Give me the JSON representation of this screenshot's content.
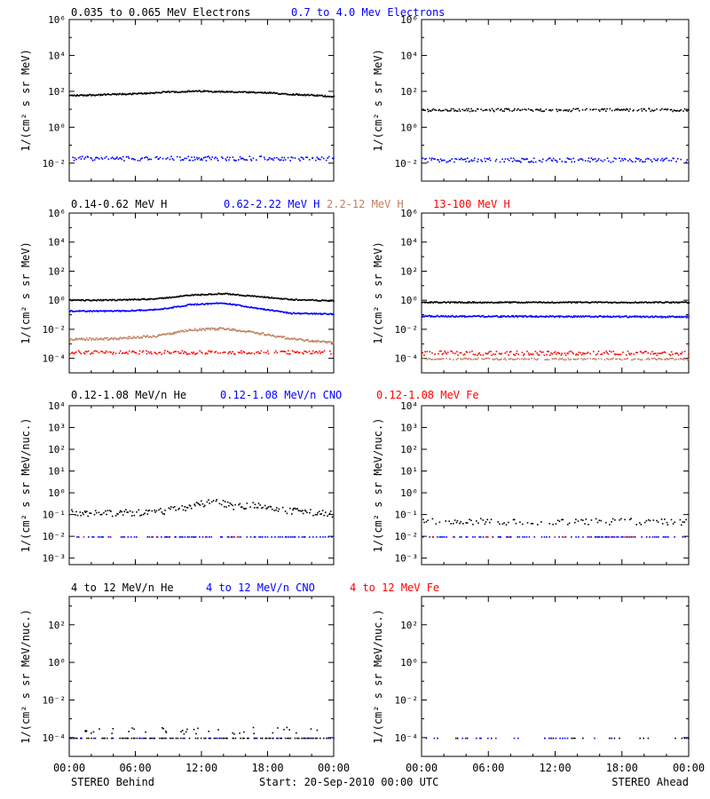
{
  "footer": {
    "left_caption": "STEREO Behind",
    "center_caption": "Start: 20-Sep-2010 00:00 UTC",
    "right_caption": "STEREO Ahead"
  },
  "x_ticks": [
    "00:00",
    "06:00",
    "12:00",
    "18:00",
    "00:00"
  ],
  "colors": {
    "black": "#000000",
    "blue": "#0000ff",
    "tan": "#c08060",
    "red": "#ff0000"
  },
  "chart_data": [
    {
      "type": "scatter",
      "ylabel_html": "1/(cm² s sr MeV)",
      "ylog": true,
      "ylim_exp": [
        -3,
        6
      ],
      "y_tick_exps": [
        -2,
        0,
        2,
        4,
        6
      ],
      "xlim_hours": [
        0,
        24
      ],
      "panels": [
        {
          "spacecraft": "STEREO Behind",
          "series": [
            {
              "name": "0.035 to 0.065 MeV Electrons",
              "color": "black",
              "style": "dense",
              "x_hours": [
                0,
                3,
                6,
                9,
                12,
                15,
                18,
                21,
                24
              ],
              "log10_y": [
                1.8,
                1.85,
                1.9,
                2.0,
                2.05,
                2.0,
                1.95,
                1.85,
                1.75
              ],
              "jitter": 0.04
            },
            {
              "name": "0.7 to 4.0 Mev Electrons",
              "color": "blue",
              "style": "sparse",
              "x_hours": [
                0,
                24
              ],
              "log10_y": [
                -1.7,
                -1.7
              ],
              "jitter": 0.12
            }
          ]
        },
        {
          "spacecraft": "STEREO Ahead",
          "series": [
            {
              "name": "0.035 to 0.065 MeV Electrons",
              "color": "black",
              "style": "sparse",
              "x_hours": [
                0,
                24
              ],
              "log10_y": [
                1.0,
                1.0
              ],
              "jitter": 0.08
            },
            {
              "name": "0.7 to 4.0 Mev Electrons",
              "color": "blue",
              "style": "sparse",
              "x_hours": [
                0,
                24
              ],
              "log10_y": [
                -1.8,
                -1.8
              ],
              "jitter": 0.12
            }
          ]
        }
      ],
      "legend": [
        {
          "text": "0.035 to 0.065 MeV Electrons",
          "color": "black"
        },
        {
          "text": "0.7 to 4.0 Mev Electrons",
          "color": "blue"
        }
      ]
    },
    {
      "type": "scatter",
      "ylabel_html": "1/(cm² s sr MeV)",
      "ylog": true,
      "ylim_exp": [
        -5,
        6
      ],
      "y_tick_exps": [
        -4,
        -2,
        0,
        2,
        4,
        6
      ],
      "xlim_hours": [
        0,
        24
      ],
      "panels": [
        {
          "spacecraft": "STEREO Behind",
          "series": [
            {
              "name": "0.14-0.62 MeV H",
              "color": "black",
              "style": "dense",
              "x_hours": [
                0,
                4,
                8,
                11,
                14,
                17,
                20,
                24
              ],
              "log10_y": [
                0.05,
                0.05,
                0.15,
                0.4,
                0.5,
                0.3,
                0.1,
                0.0
              ],
              "jitter": 0.04
            },
            {
              "name": "0.62-2.22 MeV H",
              "color": "blue",
              "style": "dense",
              "x_hours": [
                0,
                4,
                8,
                11,
                14,
                17,
                20,
                24
              ],
              "log10_y": [
                -0.7,
                -0.7,
                -0.6,
                -0.25,
                -0.15,
                -0.5,
                -0.85,
                -0.9
              ],
              "jitter": 0.04
            },
            {
              "name": "2.2-12 MeV H",
              "color": "tan",
              "style": "dense",
              "x_hours": [
                0,
                4,
                8,
                11,
                14,
                17,
                20,
                24
              ],
              "log10_y": [
                -2.65,
                -2.6,
                -2.4,
                -2.0,
                -1.9,
                -2.2,
                -2.6,
                -2.9
              ],
              "jitter": 0.08
            },
            {
              "name": "13-100 MeV H",
              "color": "red",
              "style": "sparse",
              "x_hours": [
                0,
                24
              ],
              "log10_y": [
                -3.55,
                -3.55
              ],
              "jitter": 0.12
            }
          ]
        },
        {
          "spacecraft": "STEREO Ahead",
          "series": [
            {
              "name": "0.14-0.62 MeV H",
              "color": "black",
              "style": "dense",
              "x_hours": [
                0,
                24
              ],
              "log10_y": [
                -0.1,
                -0.1
              ],
              "jitter": 0.04
            },
            {
              "name": "0.62-2.22 MeV H",
              "color": "blue",
              "style": "dense",
              "x_hours": [
                0,
                24
              ],
              "log10_y": [
                -1.05,
                -1.1
              ],
              "jitter": 0.05
            },
            {
              "name": "2.2-12 MeV H",
              "color": "tan",
              "style": "sparse",
              "x_hours": [
                0,
                24
              ],
              "log10_y": [
                -4.0,
                -4.0
              ],
              "jitter": 0.06
            },
            {
              "name": "13-100 MeV H",
              "color": "red",
              "style": "sparse",
              "x_hours": [
                0,
                24
              ],
              "log10_y": [
                -3.6,
                -3.6
              ],
              "jitter": 0.15
            }
          ]
        }
      ],
      "legend": [
        {
          "text": "0.14-0.62 MeV H",
          "color": "black"
        },
        {
          "text": "0.62-2.22 MeV H",
          "color": "blue"
        },
        {
          "text": "2.2-12 MeV H",
          "color": "tan"
        },
        {
          "text": "13-100 MeV H",
          "color": "red"
        }
      ]
    },
    {
      "type": "scatter",
      "ylabel_html": "1/(cm² s sr MeV/nuc.)",
      "ylog": true,
      "ylim_exp": [
        -3.3,
        4
      ],
      "y_tick_exps": [
        -3,
        -2,
        -1,
        0,
        1,
        2,
        3,
        4
      ],
      "y_tick_labels": [
        "10⁻³",
        "10⁻²",
        "10⁻¹",
        "10⁰",
        "10¹",
        "10²",
        "10³",
        "10⁴"
      ],
      "xlim_hours": [
        0,
        24
      ],
      "panels": [
        {
          "spacecraft": "STEREO Behind",
          "series": [
            {
              "name": "0.12-1.08 MeV/n He",
              "color": "black",
              "style": "sparse",
              "x_hours": [
                0,
                4,
                8,
                11,
                13,
                15,
                17,
                20,
                24
              ],
              "log10_y": [
                -0.9,
                -0.9,
                -0.85,
                -0.6,
                -0.35,
                -0.6,
                -0.5,
                -0.8,
                -0.95
              ],
              "jitter": 0.15
            },
            {
              "name": "0.12-1.08 MeV/n CNO",
              "color": "blue",
              "style": "floor",
              "x_hours": [
                0,
                24
              ],
              "log10_y": [
                -2.0,
                -2.0
              ],
              "jitter": 0.0
            },
            {
              "name": "0.12-1.08 MeV Fe",
              "color": "red",
              "style": "floor-rare",
              "x_hours": [
                0,
                24
              ],
              "log10_y": [
                -2.0,
                -2.0
              ],
              "jitter": 0.0
            }
          ]
        },
        {
          "spacecraft": "STEREO Ahead",
          "series": [
            {
              "name": "0.12-1.08 MeV/n He",
              "color": "black",
              "style": "floor",
              "x_hours": [
                0,
                24
              ],
              "log10_y": [
                -1.3,
                -1.3
              ],
              "jitter": 0.15
            },
            {
              "name": "0.12-1.08 MeV/n CNO",
              "color": "blue",
              "style": "floor",
              "x_hours": [
                0,
                24
              ],
              "log10_y": [
                -2.0,
                -2.0
              ],
              "jitter": 0.0
            },
            {
              "name": "0.12-1.08 MeV Fe",
              "color": "red",
              "style": "floor-rare",
              "x_hours": [
                0,
                24
              ],
              "log10_y": [
                -2.0,
                -2.0
              ],
              "jitter": 0.0
            }
          ]
        }
      ],
      "legend": [
        {
          "text": "0.12-1.08 MeV/n He",
          "color": "black"
        },
        {
          "text": "0.12-1.08 MeV/n CNO",
          "color": "blue"
        },
        {
          "text": "0.12-1.08 MeV Fe",
          "color": "red"
        }
      ]
    },
    {
      "type": "scatter",
      "ylabel_html": "1/(cm² s sr MeV/nuc.)",
      "ylog": true,
      "ylim_exp": [
        -5,
        3.5
      ],
      "y_tick_exps": [
        -4,
        -2,
        0,
        2
      ],
      "xlim_hours": [
        0,
        24
      ],
      "panels": [
        {
          "spacecraft": "STEREO Behind",
          "series": [
            {
              "name": "4 to 12 MeV/n He",
              "color": "black",
              "style": "floor",
              "x_hours": [
                0,
                24
              ],
              "log10_y": [
                -4.0,
                -4.0
              ],
              "jitter": 0.0,
              "extra": {
                "count": 40,
                "range_log10": [
                  -3.8,
                  -3.4
                ]
              }
            },
            {
              "name": "4 to 12 MeV/n CNO",
              "color": "blue",
              "style": "floor-rare",
              "x_hours": [
                0,
                24
              ],
              "log10_y": [
                -4.0,
                -4.0
              ],
              "jitter": 0.0
            },
            {
              "name": "4 to 12 MeV Fe",
              "color": "red",
              "style": "none",
              "x_hours": [
                0,
                24
              ],
              "log10_y": [
                -4.0,
                -4.0
              ],
              "jitter": 0.0
            }
          ]
        },
        {
          "spacecraft": "STEREO Ahead",
          "series": [
            {
              "name": "4 to 12 MeV/n He",
              "color": "black",
              "style": "floor-rare",
              "x_hours": [
                0,
                24
              ],
              "log10_y": [
                -4.0,
                -4.0
              ],
              "jitter": 0.0
            },
            {
              "name": "4 to 12 MeV/n CNO",
              "color": "blue",
              "style": "floor-rare",
              "x_hours": [
                0,
                24
              ],
              "log10_y": [
                -4.0,
                -4.0
              ],
              "jitter": 0.0
            },
            {
              "name": "4 to 12 MeV Fe",
              "color": "red",
              "style": "none",
              "x_hours": [
                0,
                24
              ],
              "log10_y": [
                -4.0,
                -4.0
              ],
              "jitter": 0.0
            }
          ]
        }
      ],
      "legend": [
        {
          "text": "4 to 12 MeV/n He",
          "color": "black"
        },
        {
          "text": "4 to 12 MeV/n CNO",
          "color": "blue"
        },
        {
          "text": "4 to 12 MeV Fe",
          "color": "red"
        }
      ]
    }
  ]
}
